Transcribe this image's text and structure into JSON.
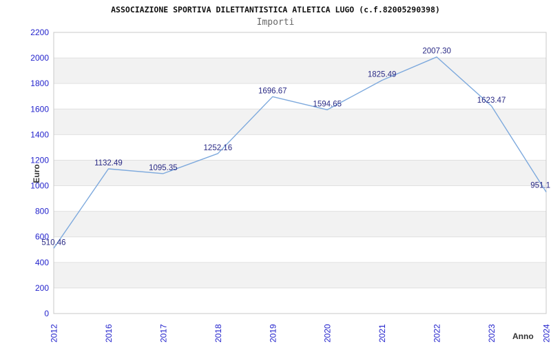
{
  "chart_data": {
    "type": "line",
    "title": "ASSOCIAZIONE SPORTIVA DILETTANTISTICA ATLETICA LUGO (c.f.82005290398)",
    "subtitle": "Importi",
    "xlabel": "Anno",
    "ylabel": "Euro",
    "categories": [
      "2012",
      "2016",
      "2017",
      "2018",
      "2019",
      "2020",
      "2021",
      "2022",
      "2023",
      "2024"
    ],
    "values": [
      510.46,
      1132.49,
      1095.35,
      1252.16,
      1696.67,
      1594.65,
      1825.49,
      2007.3,
      1623.47,
      951.1
    ],
    "point_labels": [
      "510.46",
      "1132.49",
      "1095.35",
      "1252.16",
      "1696.67",
      "1594.65",
      "1825.49",
      "2007.30",
      "1623.47",
      "951.1"
    ],
    "ylim": [
      0,
      2200
    ],
    "ytick_step": 200,
    "grid": "horizontal-bands",
    "legend": "none",
    "colors": {
      "line": "#7da9dd",
      "axis_tick_text": "#2222cc",
      "data_label": "#2a2a85",
      "band": "#f2f2f2",
      "gridline": "#e0e0e0",
      "plot_border": "#c8c8c8",
      "title": "#111111",
      "subtitle": "#666666",
      "axis_title": "#333333"
    }
  }
}
